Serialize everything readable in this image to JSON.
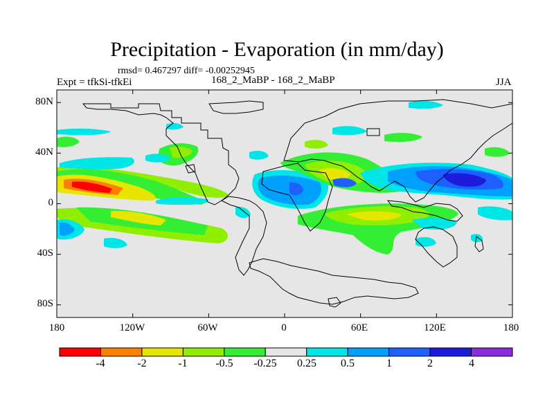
{
  "title": "Precipitation - Evaporation (in mm/day)",
  "stats": "rmsd= 0.467297 diff= -0.00252945",
  "left_label": "Expt = tfkSi-tfkEi",
  "center_label": "168_2_MaBP - 168_2_MaBP",
  "right_label": "JJA",
  "map": {
    "projection": "cylindrical-equidistant",
    "lon_range": [
      -180,
      180
    ],
    "lat_range": [
      -90,
      90
    ],
    "y_ticks": [
      "80N",
      "40N",
      "0",
      "40S",
      "80S"
    ],
    "x_ticks": [
      "180",
      "120W",
      "60W",
      "0",
      "60E",
      "120E",
      "180"
    ],
    "background_color": "#e6e6e6",
    "coastline_color": "#000000"
  },
  "colorbar": {
    "colors": [
      "#ff0000",
      "#ff8000",
      "#e6e600",
      "#90ee00",
      "#33ee33",
      "#e6e6e6",
      "#00e6e6",
      "#00a0ff",
      "#1f5fff",
      "#1c1cdd",
      "#8a2be2"
    ],
    "labels": [
      "-4",
      "-2",
      "-1",
      "-0.5",
      "-0.25",
      "0.25",
      "0.5",
      "1",
      "2",
      "4"
    ]
  }
}
